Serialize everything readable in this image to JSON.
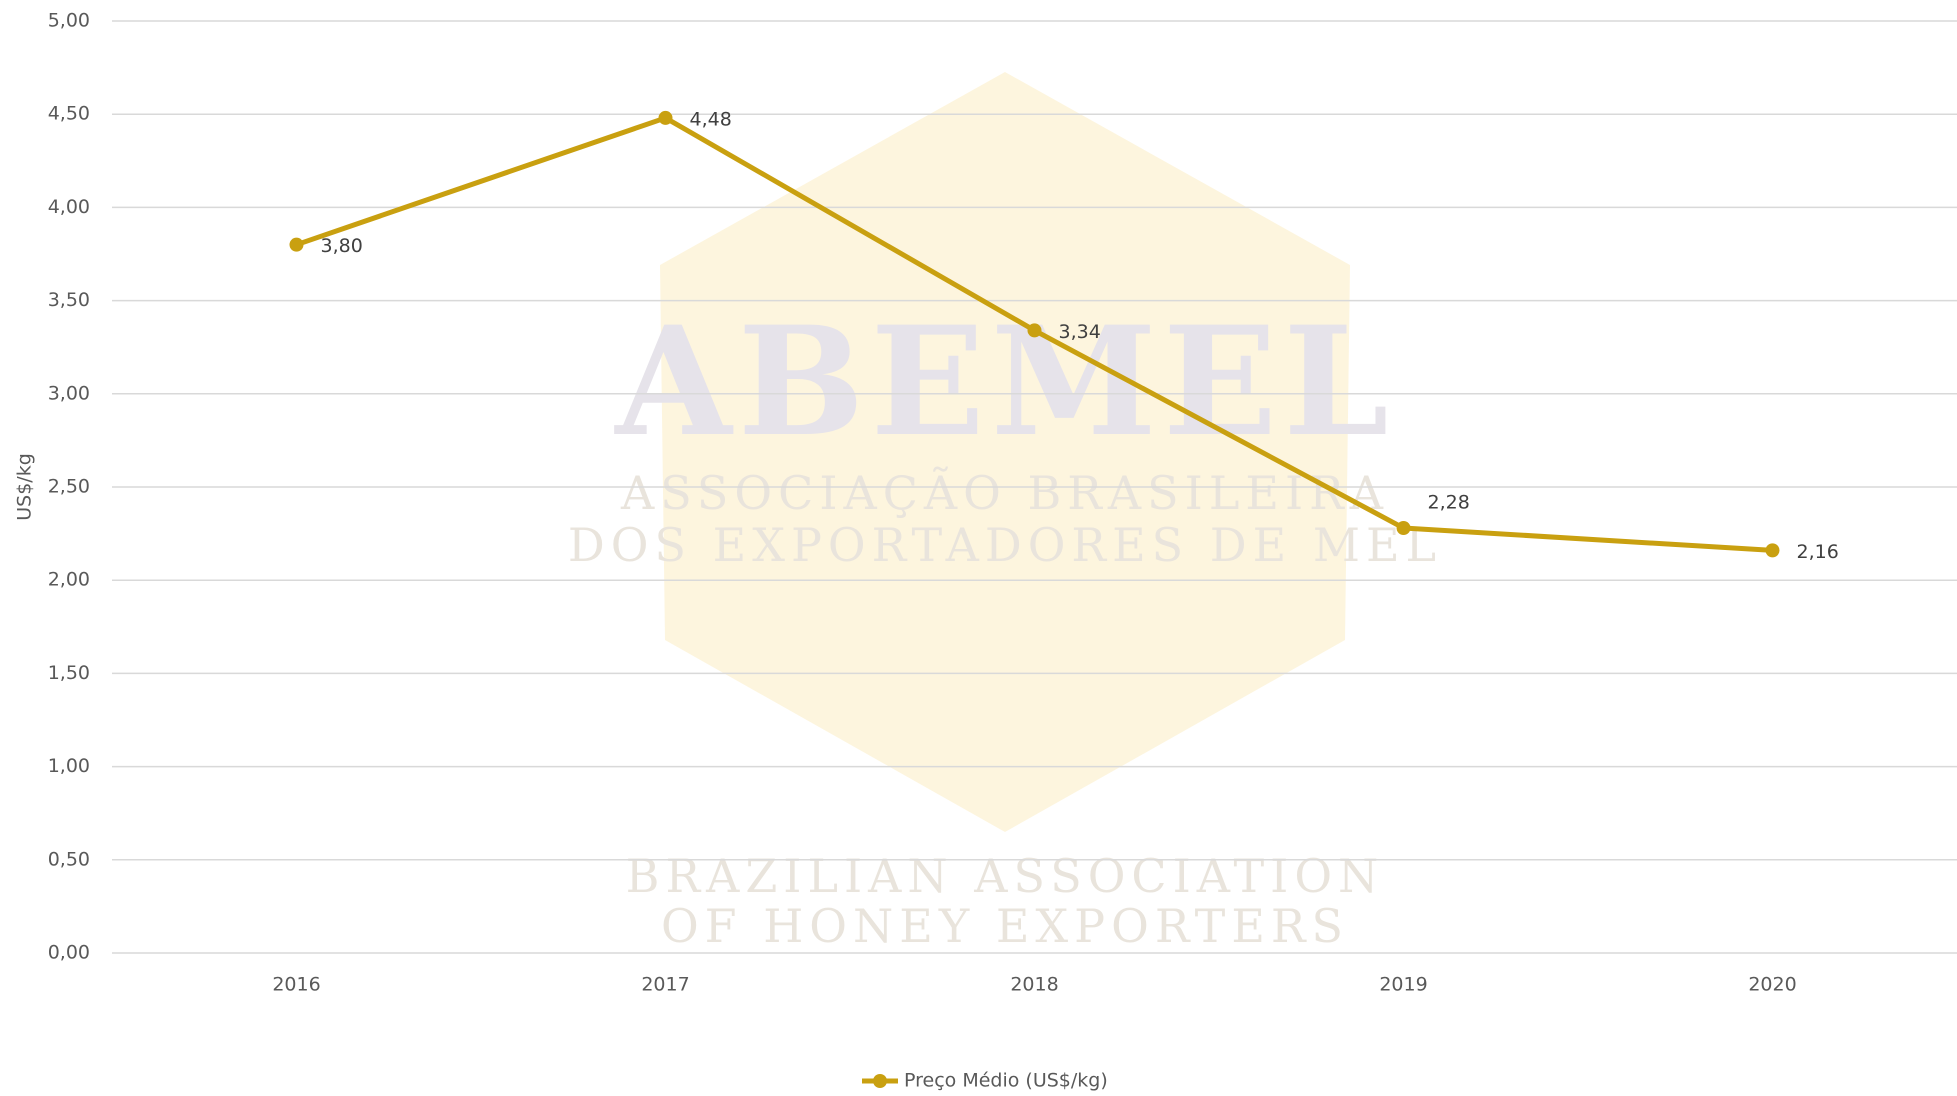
{
  "chart_data": {
    "type": "line",
    "categories": [
      "2016",
      "2017",
      "2018",
      "2019",
      "2020"
    ],
    "series": [
      {
        "name": "Preço Médio (US$/kg)",
        "color": "#c9a010",
        "values": [
          3.8,
          4.48,
          3.34,
          2.28,
          2.16
        ],
        "value_labels": [
          "3,80",
          "4,48",
          "3,34",
          "2,28",
          "2,16"
        ]
      }
    ],
    "ylim": [
      0,
      5
    ],
    "yticks": [
      {
        "value": 0,
        "label": "0,00"
      },
      {
        "value": 0.5,
        "label": "0,50"
      },
      {
        "value": 1,
        "label": "1,00"
      },
      {
        "value": 1.5,
        "label": "1,50"
      },
      {
        "value": 2,
        "label": "2,00"
      },
      {
        "value": 2.5,
        "label": "2,50"
      },
      {
        "value": 3,
        "label": "3,00"
      },
      {
        "value": 3.5,
        "label": "3,50"
      },
      {
        "value": 4,
        "label": "4,00"
      },
      {
        "value": 4.5,
        "label": "4,50"
      },
      {
        "value": 5,
        "label": "5,00"
      }
    ],
    "y_label": "US$/kg",
    "grid": true,
    "legend": "bottom",
    "watermark": [
      "ABEMEL",
      "ASSOCIAÇÃO BRASILEIRA",
      "DOS EXPORTADORES DE MEL",
      "BRAZILIAN ASSOCIATION",
      "OF HONEY EXPORTERS"
    ]
  }
}
